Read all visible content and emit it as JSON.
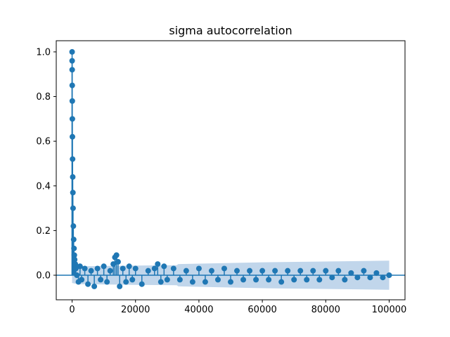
{
  "chart_data": {
    "type": "scatter",
    "title": "sigma autocorrelation",
    "xlabel": "",
    "ylabel": "",
    "xlim": [
      -5000,
      105000
    ],
    "ylim": [
      -0.11,
      1.05
    ],
    "x_ticks": [
      0,
      20000,
      40000,
      60000,
      80000,
      100000
    ],
    "x_tick_labels": [
      "0",
      "20000",
      "40000",
      "60000",
      "80000",
      "100000"
    ],
    "y_ticks": [
      0.0,
      0.2,
      0.4,
      0.6,
      0.8,
      1.0
    ],
    "y_tick_labels": [
      "0.0",
      "0.2",
      "0.4",
      "0.6",
      "0.8",
      "1.0"
    ],
    "grid": false,
    "legend": "none",
    "baseline_y": 0.0,
    "confidence_band": {
      "x": [
        1,
        2000,
        20000,
        33000,
        33500,
        60000,
        100000
      ],
      "upper": [
        0.035,
        0.04,
        0.043,
        0.045,
        0.05,
        0.058,
        0.065
      ],
      "lower": [
        -0.035,
        -0.04,
        -0.043,
        -0.045,
        -0.05,
        -0.058,
        -0.065
      ]
    },
    "series": [
      {
        "x": [
          0,
          10,
          20,
          40,
          60,
          80,
          100,
          150,
          200,
          250,
          300,
          400,
          500,
          600,
          700,
          800,
          1000,
          1200,
          1500,
          2000,
          2500,
          3000,
          4000,
          5000,
          6000,
          7000,
          8000,
          9000,
          10000,
          11000,
          12000,
          13000,
          13500,
          14000,
          14500,
          15000,
          16000,
          17000,
          18000,
          19000,
          20000,
          22000,
          24000,
          26000,
          27000,
          28000,
          29000,
          30000,
          32000,
          34000,
          36000,
          38000,
          40000,
          42000,
          44000,
          46000,
          48000,
          50000,
          52000,
          54000,
          56000,
          58000,
          60000,
          62000,
          64000,
          66000,
          68000,
          70000,
          72000,
          74000,
          76000,
          78000,
          80000,
          82000,
          84000,
          86000,
          88000,
          90000,
          92000,
          94000,
          96000,
          98000,
          100000
        ],
        "y": [
          1.0,
          0.96,
          0.92,
          0.85,
          0.78,
          0.7,
          0.62,
          0.52,
          0.44,
          0.37,
          0.3,
          0.22,
          0.16,
          0.12,
          0.09,
          0.07,
          0.05,
          0.03,
          0.0,
          -0.03,
          0.04,
          -0.02,
          0.03,
          -0.04,
          0.02,
          -0.05,
          0.03,
          -0.02,
          0.04,
          -0.03,
          0.02,
          0.05,
          0.08,
          0.09,
          0.06,
          -0.05,
          0.03,
          -0.03,
          0.04,
          -0.02,
          0.03,
          -0.04,
          0.02,
          0.03,
          0.05,
          -0.03,
          0.04,
          -0.02,
          0.03,
          -0.02,
          0.02,
          -0.03,
          0.03,
          -0.03,
          0.02,
          -0.02,
          0.03,
          -0.03,
          0.02,
          -0.02,
          0.02,
          -0.02,
          0.02,
          -0.02,
          0.02,
          -0.03,
          0.02,
          -0.02,
          0.02,
          -0.02,
          0.02,
          -0.02,
          0.02,
          -0.01,
          0.02,
          -0.02,
          0.01,
          -0.01,
          0.02,
          -0.01,
          0.01,
          -0.01,
          0.0
        ]
      }
    ],
    "colors": {
      "marker": "#1f77b4",
      "band": "#a6c4e3",
      "baseline": "#1f77b4",
      "axes": "#000000"
    }
  }
}
